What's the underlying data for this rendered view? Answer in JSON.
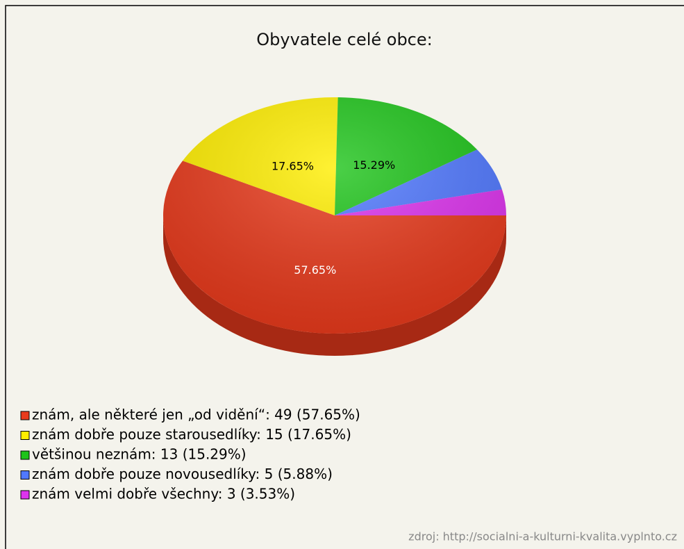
{
  "chart_data": {
    "type": "pie",
    "title": "Obyvatele celé obce:",
    "categories": [
      "znám, ale některé jen „od vidění“: 49 (57.65%)",
      "znám dobře pouze starousedlíky: 15 (17.65%)",
      "většinou neznám: 13 (15.29%)",
      "znám dobře pouze novousedlíky: 5 (5.88%)",
      "znám velmi dobře všechny: 3 (3.53%)"
    ],
    "values": [
      57.65,
      17.65,
      15.29,
      5.88,
      3.53
    ],
    "value_labels": [
      "57.65%",
      "17.65%",
      "15.29%",
      null,
      null
    ],
    "colors": [
      "#e83a1c",
      "#ffee00",
      "#1ec41a",
      "#5078ff",
      "#dd33ee"
    ],
    "legend": "bottom-left",
    "source": "zdroj: http://socialni-a-kulturni-kvalita.vyplnto.cz"
  }
}
